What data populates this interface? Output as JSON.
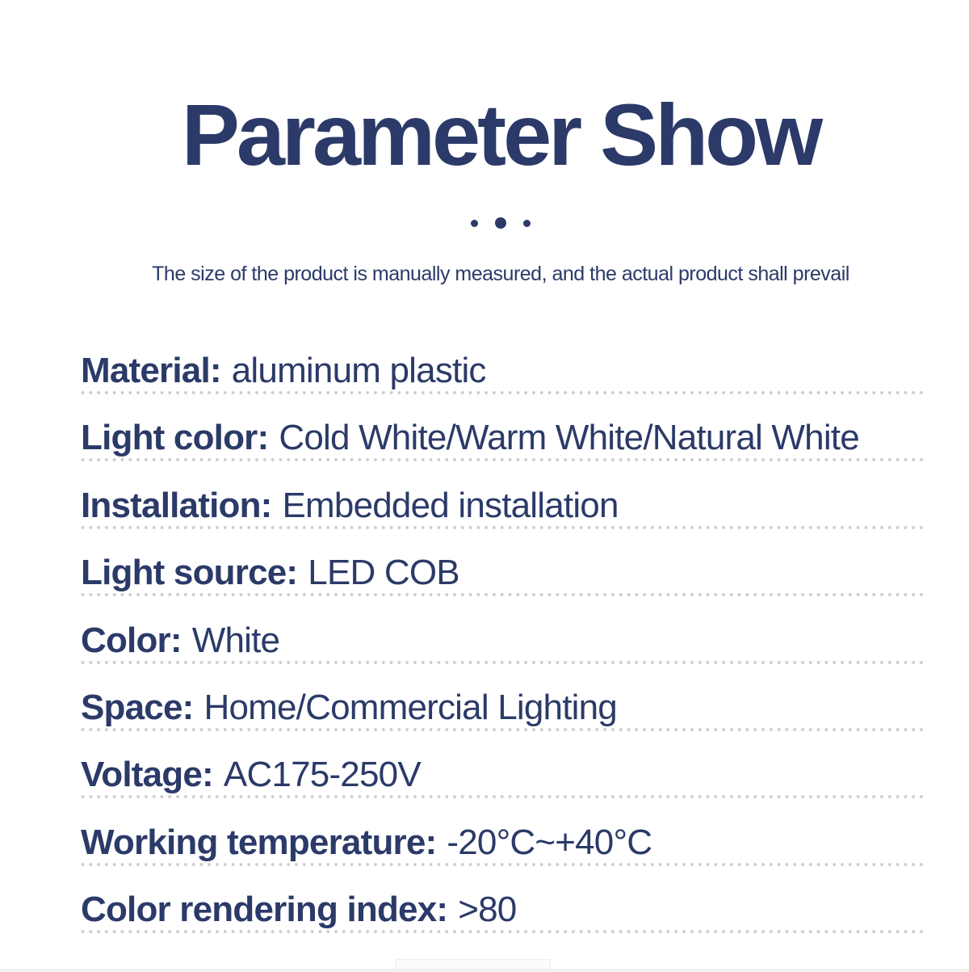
{
  "header": {
    "title": "Parameter Show",
    "subtitle": "The size of the product is manually measured, and the actual product shall prevail"
  },
  "parameters": [
    {
      "label": "Material:",
      "value": "aluminum plastic"
    },
    {
      "label": "Light color:",
      "value": "Cold White/Warm White/Natural White"
    },
    {
      "label": "Installation:",
      "value": "Embedded installation"
    },
    {
      "label": "Light source:",
      "value": "LED COB"
    },
    {
      "label": "Color:",
      "value": "White"
    },
    {
      "label": "Space:",
      "value": "Home/Commercial Lighting"
    },
    {
      "label": "Voltage:",
      "value": "AC175-250V"
    },
    {
      "label": "Working temperature:",
      "value": "-20°C~+40°C"
    },
    {
      "label": "Color rendering index:",
      "value": ">80"
    }
  ],
  "colors": {
    "text_navy": "#2b3a68",
    "divider_dot": "#cccccc",
    "background": "#ffffff"
  }
}
